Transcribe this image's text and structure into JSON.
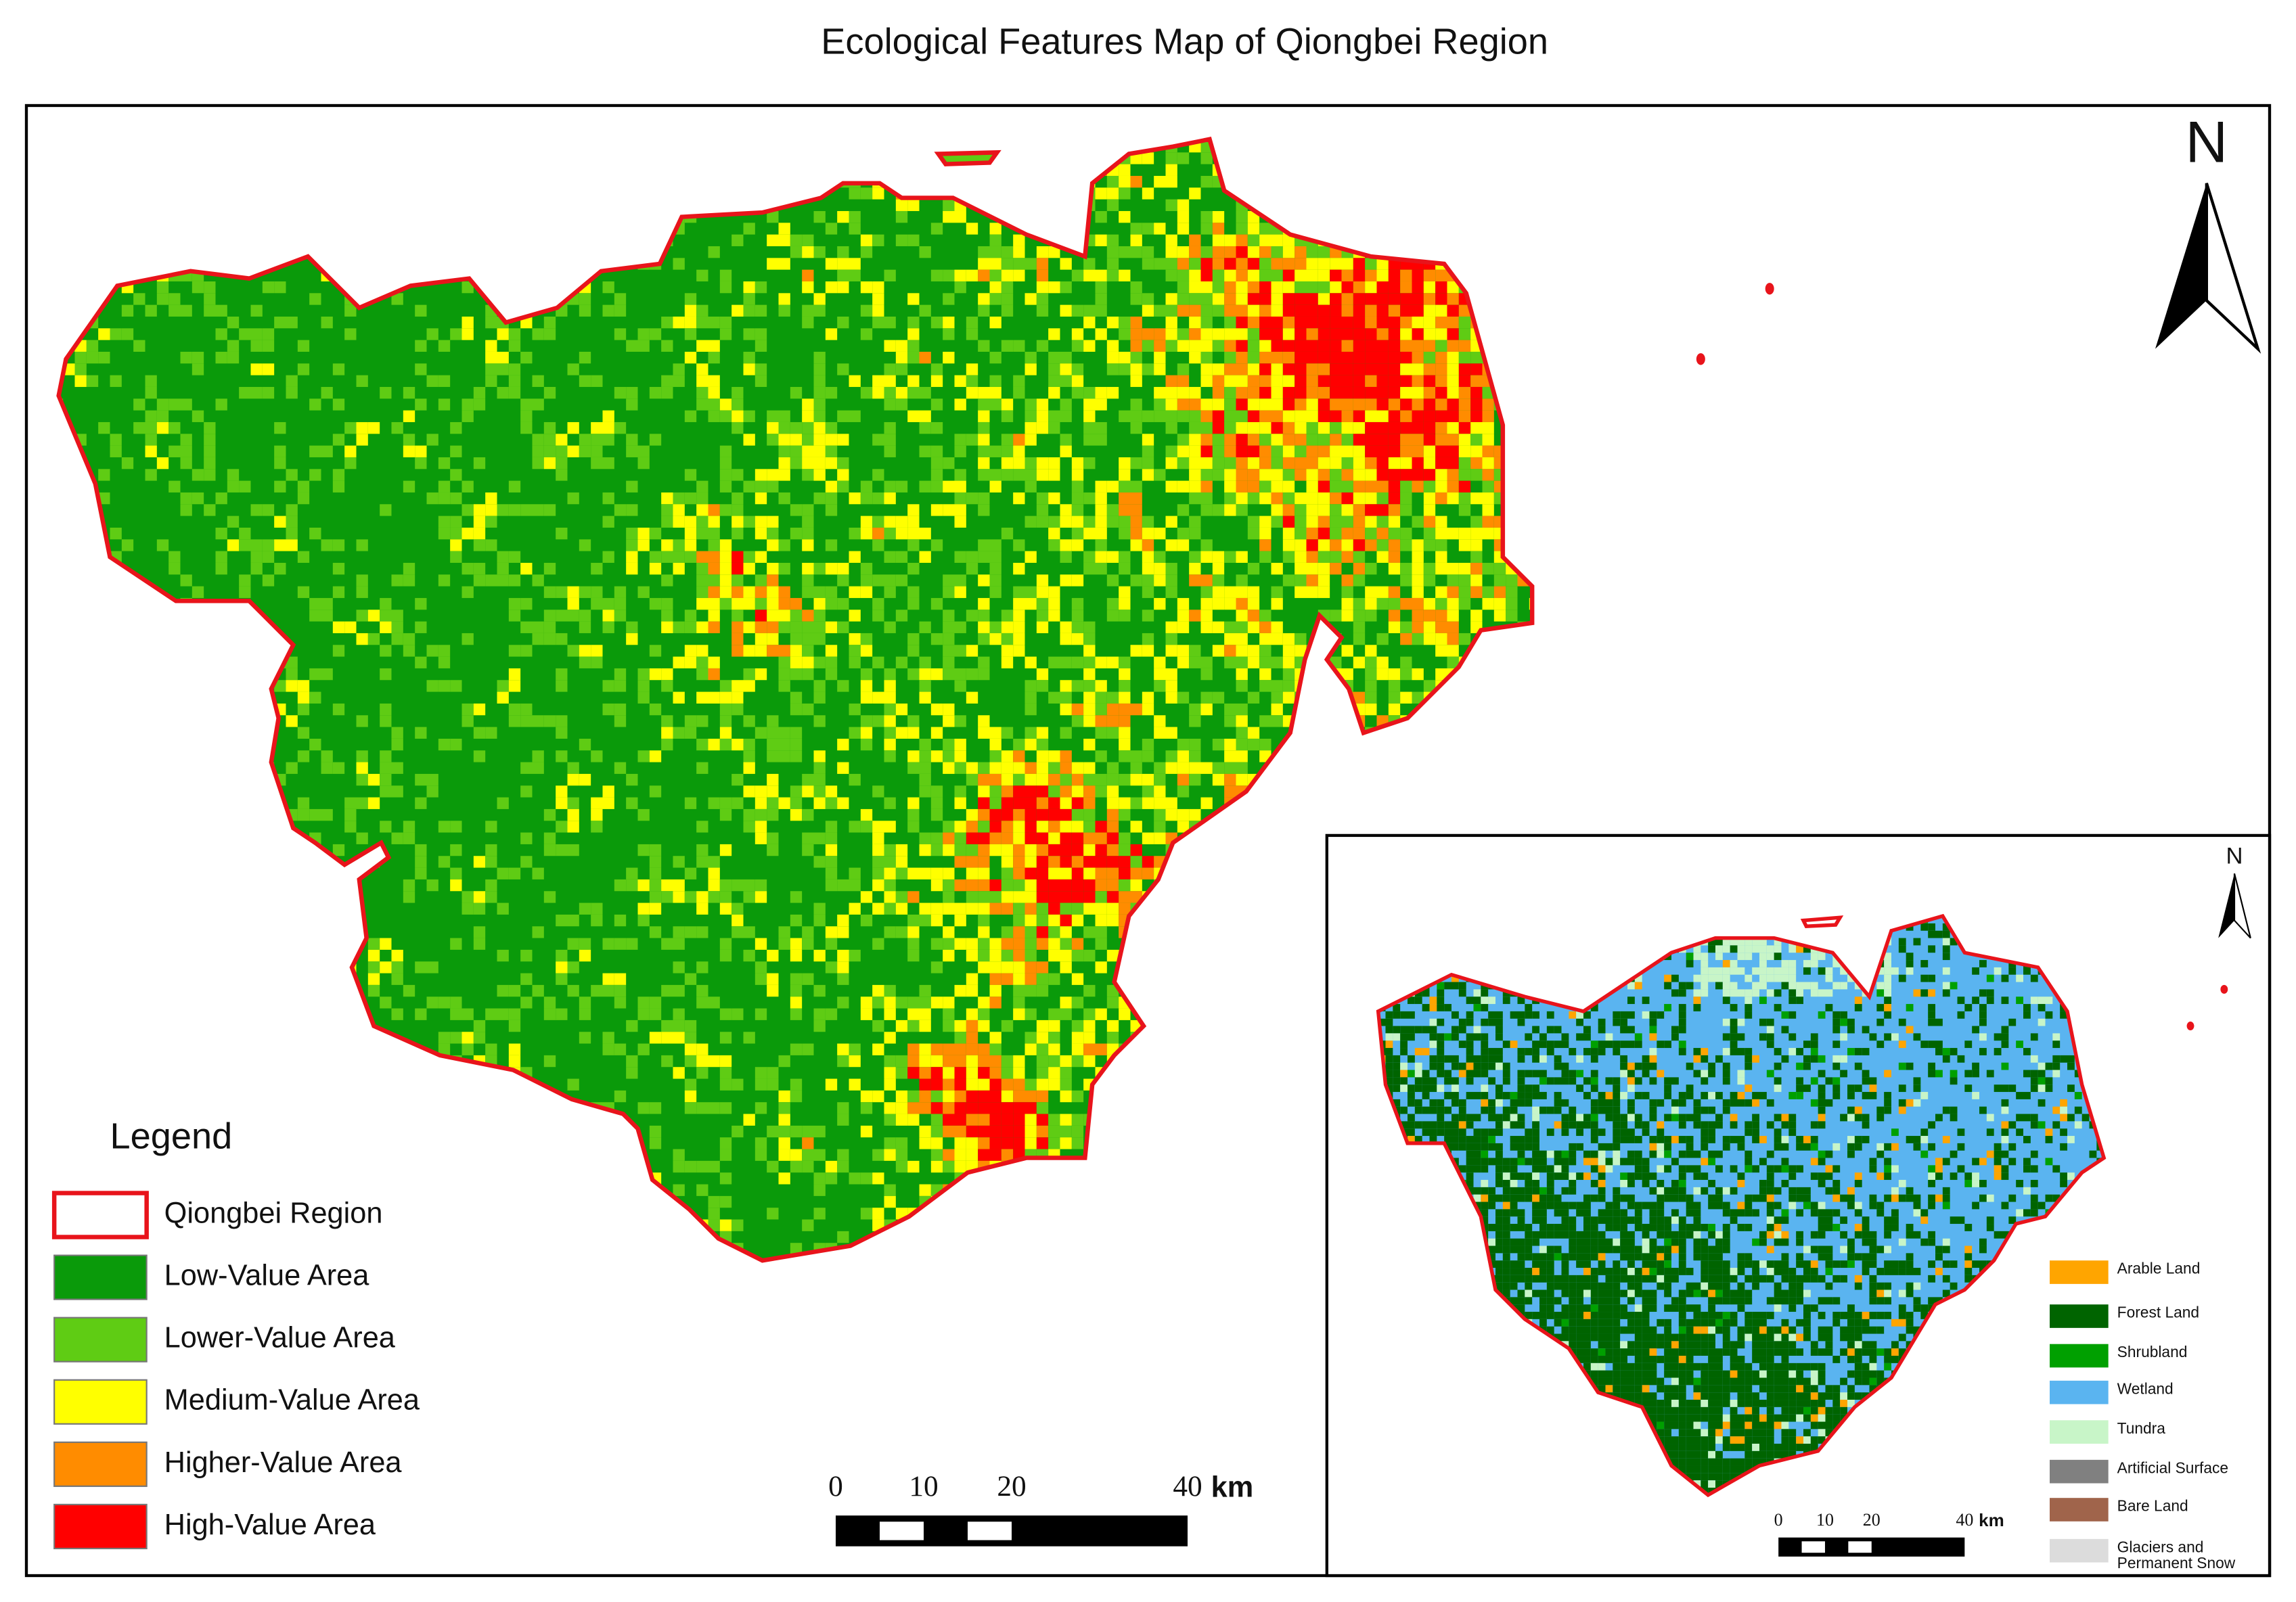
{
  "title": "Ecological Features Map of Qiongbei Region",
  "north": "N",
  "legend": {
    "title": "Legend",
    "boundary": {
      "label": "Qiongbei Region",
      "color": "#e8141b"
    },
    "classes": [
      {
        "label": "Low-Value Area",
        "color": "#0a9a0a"
      },
      {
        "label": "Lower-Value Area",
        "color": "#5fcc14"
      },
      {
        "label": "Medium-Value Area",
        "color": "#ffff00"
      },
      {
        "label": "Higher-Value Area",
        "color": "#ff8c00"
      },
      {
        "label": "High-Value Area",
        "color": "#ff0000"
      }
    ]
  },
  "scale_bar": {
    "ticks": [
      0,
      10,
      20,
      40
    ],
    "unit": "km"
  },
  "inset": {
    "north": "N",
    "legend": [
      {
        "label": "Arable Land",
        "color": "#ffa500"
      },
      {
        "label": "Forest Land",
        "color": "#006400"
      },
      {
        "label": "Shrubland",
        "color": "#00a000"
      },
      {
        "label": "Wetland",
        "color": "#5ab4f0"
      },
      {
        "label": "Tundra",
        "color": "#c8f5c8"
      },
      {
        "label": "Artificial Surface",
        "color": "#808080"
      },
      {
        "label": "Bare Land",
        "color": "#a0644b"
      },
      {
        "label": "Glaciers and Permanent Snow",
        "color": "#dcdcdc"
      }
    ],
    "scale_bar": {
      "ticks": [
        0,
        10,
        20,
        40
      ],
      "unit": "km"
    }
  }
}
